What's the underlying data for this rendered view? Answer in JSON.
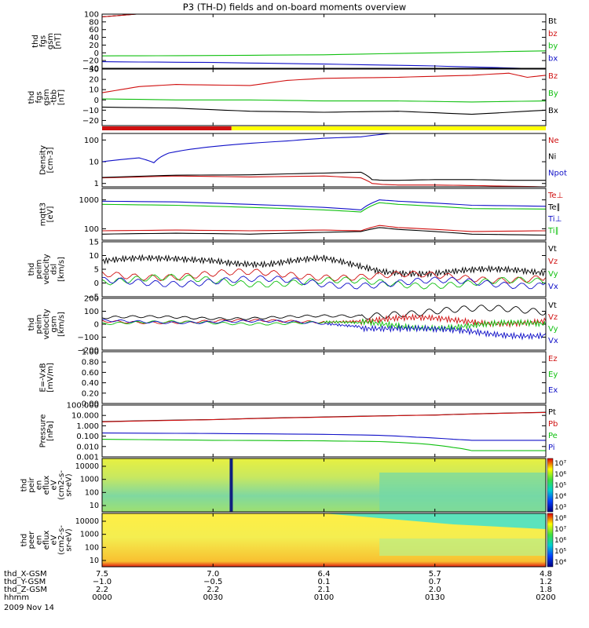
{
  "title": "P3 (TH-D) fields and on-board moments overview",
  "date_label": "2009 Nov 14",
  "colors": {
    "black": "#000000",
    "red": "#d01010",
    "green": "#10c010",
    "blue": "#1010c8",
    "yellow": "#ffff00",
    "axis": "#000000"
  },
  "chart_data": [
    {
      "id": "fgs_gsm",
      "type": "line",
      "ylabel_lines": [
        "thd",
        "fgs",
        "gsm",
        "[nT]"
      ],
      "ylim": [
        -40,
        100
      ],
      "yticks": [
        -40,
        -20,
        0,
        20,
        40,
        60,
        80,
        100
      ],
      "ytick_labels": [
        "−40",
        "−20",
        "0",
        "20",
        "40",
        "60",
        "80",
        "100"
      ],
      "series": [
        {
          "name": "Bt",
          "color": "black",
          "x": [
            0,
            4,
            8,
            12
          ],
          "y": [
            93,
            96,
            99,
            103
          ]
        },
        {
          "name": "bz",
          "color": "red",
          "x": [
            0,
            4,
            8,
            12
          ],
          "y": [
            93,
            96,
            99,
            102
          ]
        },
        {
          "name": "by",
          "color": "green",
          "x": [
            0,
            30,
            60,
            90,
            120
          ],
          "y": [
            -8,
            -7,
            -5,
            0,
            5
          ]
        },
        {
          "name": "bx",
          "color": "blue",
          "x": [
            0,
            30,
            60,
            90,
            110,
            120
          ],
          "y": [
            -23,
            -25,
            -29,
            -34,
            -39,
            -43
          ]
        }
      ]
    },
    {
      "id": "fgs_gse_dsl",
      "type": "line",
      "ylabel_lines": [
        "thd",
        "fgs",
        "gsm",
        "-tbb",
        "[nT]"
      ],
      "ylim": [
        -25,
        30
      ],
      "yticks": [
        -20,
        -10,
        0,
        10,
        20,
        30
      ],
      "ytick_labels": [
        "−20",
        "−10",
        "0",
        "10",
        "20",
        "30"
      ],
      "series": [
        {
          "name": "Bz",
          "color": "red",
          "x": [
            0,
            10,
            20,
            40,
            50,
            60,
            80,
            100,
            110,
            115,
            120
          ],
          "y": [
            7,
            13,
            15,
            14,
            19,
            21,
            22,
            24,
            26,
            22,
            24
          ]
        },
        {
          "name": "By",
          "color": "green",
          "x": [
            0,
            20,
            40,
            60,
            80,
            100,
            120
          ],
          "y": [
            1,
            0,
            0,
            -1,
            -1,
            -2,
            -1
          ]
        },
        {
          "name": "Bx",
          "color": "black",
          "x": [
            0,
            20,
            40,
            60,
            80,
            100,
            120
          ],
          "y": [
            -7,
            -8,
            -11,
            -12,
            -11,
            -14,
            -10
          ]
        }
      ]
    },
    {
      "id": "density",
      "type": "line",
      "scale": "log",
      "ylabel_lines": [
        "Density",
        "[cm-3]"
      ],
      "ylim": [
        0.7,
        200
      ],
      "yticks": [
        1,
        10,
        100
      ],
      "ytick_labels": [
        "1",
        "10",
        "100"
      ],
      "series": [
        {
          "name": "Ne",
          "color": "red",
          "x": [
            0,
            20,
            40,
            60,
            70,
            73,
            76,
            80,
            90,
            100,
            110,
            120
          ],
          "y": [
            1.8,
            2.2,
            2.0,
            2.2,
            1.8,
            1.0,
            0.9,
            0.85,
            0.85,
            0.8,
            0.75,
            0.7
          ]
        },
        {
          "name": "Ni",
          "color": "black",
          "x": [
            0,
            20,
            40,
            60,
            70,
            73,
            76,
            80,
            90,
            100,
            110,
            120
          ],
          "y": [
            1.9,
            2.4,
            2.5,
            3.0,
            3.3,
            1.5,
            1.4,
            1.4,
            1.5,
            1.5,
            1.4,
            1.4
          ]
        },
        {
          "name": "Npot",
          "color": "blue",
          "x": [
            0,
            10,
            14,
            18,
            30,
            50,
            60,
            70,
            78
          ],
          "y": [
            10,
            15,
            9,
            25,
            50,
            90,
            120,
            140,
            200
          ]
        }
      ]
    },
    {
      "id": "temperature",
      "type": "line",
      "scale": "log",
      "ylabel_lines": [
        "mqtt3",
        "[eV]"
      ],
      "ylim": [
        40,
        2500
      ],
      "yticks": [
        100,
        1000
      ],
      "ytick_labels": [
        "100",
        "1000"
      ],
      "series": [
        {
          "name": "Te⊥",
          "color": "red",
          "x": [
            0,
            20,
            40,
            60,
            70,
            75,
            80,
            100,
            120
          ],
          "y": [
            85,
            90,
            85,
            90,
            85,
            130,
            110,
            80,
            85
          ]
        },
        {
          "name": "Te∥",
          "color": "black",
          "x": [
            0,
            20,
            40,
            60,
            70,
            75,
            80,
            100,
            120
          ],
          "y": [
            65,
            70,
            65,
            75,
            80,
            110,
            95,
            65,
            60
          ]
        },
        {
          "name": "Ti⊥",
          "color": "blue",
          "x": [
            0,
            20,
            40,
            60,
            70,
            75,
            80,
            100,
            120
          ],
          "y": [
            900,
            850,
            700,
            550,
            450,
            1000,
            900,
            650,
            600
          ]
        },
        {
          "name": "Ti∥",
          "color": "green",
          "x": [
            0,
            20,
            40,
            60,
            70,
            75,
            80,
            100,
            120
          ],
          "y": [
            700,
            650,
            550,
            450,
            380,
            800,
            700,
            500,
            480
          ]
        }
      ]
    },
    {
      "id": "peim_velocity_dsl",
      "type": "line",
      "ylabel_lines": [
        "thd",
        "peim",
        "velocity",
        "dsl",
        "[km/s]"
      ],
      "ylim": [
        -5,
        15
      ],
      "yticks": [
        -5,
        0,
        5,
        10,
        15
      ],
      "ytick_labels": [
        "−5",
        "0",
        "5",
        "10",
        "15"
      ],
      "series": [
        {
          "name": "Vt",
          "color": "black",
          "x": [
            0,
            15,
            30,
            45,
            60,
            75,
            90,
            105,
            120
          ],
          "y": [
            8,
            8,
            9,
            7,
            8,
            5,
            4,
            4,
            4
          ]
        },
        {
          "name": "Vz",
          "color": "red",
          "x": [
            0,
            30,
            60,
            90,
            120
          ],
          "y": [
            3,
            3,
            3,
            2,
            2
          ]
        },
        {
          "name": "Vy",
          "color": "green",
          "x": [
            0,
            30,
            60,
            90,
            120
          ],
          "y": [
            1,
            1,
            0,
            0,
            0
          ]
        },
        {
          "name": "Vx",
          "color": "blue",
          "x": [
            0,
            30,
            60,
            90,
            120
          ],
          "y": [
            0,
            1,
            0,
            0,
            0
          ]
        }
      ]
    },
    {
      "id": "peim_velocity_gsm",
      "type": "line",
      "ylabel_lines": [
        "thd",
        "peim",
        "velocity",
        "gsm",
        "[km/s]"
      ],
      "ylim": [
        -200,
        200
      ],
      "yticks": [
        -200,
        -100,
        0,
        100,
        200
      ],
      "ytick_labels": [
        "−200",
        "−100",
        "0",
        "100",
        "200"
      ],
      "series": [
        {
          "name": "Vt",
          "color": "black",
          "x": [
            0,
            30,
            60,
            70,
            80,
            90,
            100,
            110,
            120
          ],
          "y": [
            50,
            50,
            55,
            60,
            100,
            110,
            105,
            100,
            100
          ]
        },
        {
          "name": "Vz",
          "color": "red",
          "x": [
            0,
            30,
            60,
            75,
            90,
            105,
            120
          ],
          "y": [
            20,
            20,
            25,
            30,
            30,
            25,
            25
          ]
        },
        {
          "name": "Vy",
          "color": "green",
          "x": [
            0,
            30,
            60,
            75,
            90,
            105,
            120
          ],
          "y": [
            10,
            10,
            10,
            0,
            -10,
            -10,
            -10
          ]
        },
        {
          "name": "Vx",
          "color": "blue",
          "x": [
            0,
            30,
            60,
            75,
            90,
            105,
            120
          ],
          "y": [
            20,
            20,
            10,
            -20,
            -60,
            -70,
            -70
          ]
        }
      ]
    },
    {
      "id": "efield",
      "type": "line",
      "ylabel_lines": [
        "E=-VxB",
        "[mV/m]"
      ],
      "ylim": [
        0,
        1
      ],
      "yticks": [
        0,
        0.2,
        0.4,
        0.6,
        0.8,
        1.0
      ],
      "ytick_labels": [
        "0.00",
        "0.20",
        "0.40",
        "0.60",
        "0.80",
        "1.00"
      ],
      "series": [
        {
          "name": "Ez",
          "color": "red",
          "x": [],
          "y": []
        },
        {
          "name": "Ey",
          "color": "green",
          "x": [],
          "y": []
        },
        {
          "name": "Ex",
          "color": "blue",
          "x": [],
          "y": []
        }
      ]
    },
    {
      "id": "pressure",
      "type": "line",
      "scale": "log",
      "ylabel_lines": [
        "Pressure",
        "[nPa]"
      ],
      "ylim": [
        0.001,
        100
      ],
      "yticks": [
        0.001,
        0.01,
        0.1,
        1,
        10,
        100
      ],
      "ytick_labels": [
        "0.001",
        "0.010",
        "0.100",
        "1.000",
        "10.000",
        "100.000"
      ],
      "series": [
        {
          "name": "Pt",
          "color": "black",
          "x": [
            0,
            30,
            60,
            90,
            120
          ],
          "y": [
            2.5,
            4,
            7,
            11,
            20
          ]
        },
        {
          "name": "Pb",
          "color": "red",
          "x": [
            0,
            30,
            60,
            90,
            120
          ],
          "y": [
            2.4,
            3.9,
            6.8,
            10.8,
            19.5
          ]
        },
        {
          "name": "Pe",
          "color": "green",
          "x": [
            0,
            30,
            60,
            75,
            85,
            95,
            100,
            120
          ],
          "y": [
            0.05,
            0.04,
            0.035,
            0.03,
            0.02,
            0.008,
            0.004,
            0.004
          ]
        },
        {
          "name": "Pi",
          "color": "blue",
          "x": [
            0,
            30,
            60,
            75,
            85,
            95,
            100,
            120
          ],
          "y": [
            0.2,
            0.18,
            0.15,
            0.12,
            0.08,
            0.05,
            0.04,
            0.04
          ]
        }
      ]
    },
    {
      "id": "peir_en_eflux",
      "type": "heatmap",
      "ylabel_lines": [
        "thd",
        "peir",
        "en",
        "eflux",
        "eV",
        "(cm2-s-",
        "sr-eV)"
      ],
      "ytick_labels": [
        "10",
        "100",
        "1000",
        "10000"
      ],
      "colorbar_labels": [
        "10³",
        "10⁴",
        "10⁵",
        "10⁶",
        "10⁷"
      ]
    },
    {
      "id": "peer_en_eflux",
      "type": "heatmap",
      "ylabel_lines": [
        "thd",
        "peer",
        "en",
        "eflux",
        "eV",
        "(cm2-s-",
        "sr-eV)"
      ],
      "ytick_labels": [
        "10",
        "100",
        "1000",
        "10000"
      ],
      "colorbar_labels": [
        "10⁴",
        "10⁵",
        "10⁶",
        "10⁷",
        "10⁸"
      ]
    }
  ],
  "time_axis": {
    "rows": [
      {
        "label": "thd_X-GSM",
        "values": [
          "7.5",
          "7.0",
          "6.4",
          "5.7",
          "4.8"
        ]
      },
      {
        "label": "thd_Y-GSM",
        "values": [
          "−1.0",
          "−0.5",
          "0.1",
          "0.7",
          "1.2"
        ]
      },
      {
        "label": "thd_Z-GSM",
        "values": [
          "2.2",
          "2.2",
          "2.1",
          "2.0",
          "1.8"
        ]
      },
      {
        "label": "hhmm",
        "values": [
          "0000",
          "0030",
          "0100",
          "0130",
          "0200"
        ]
      }
    ]
  }
}
